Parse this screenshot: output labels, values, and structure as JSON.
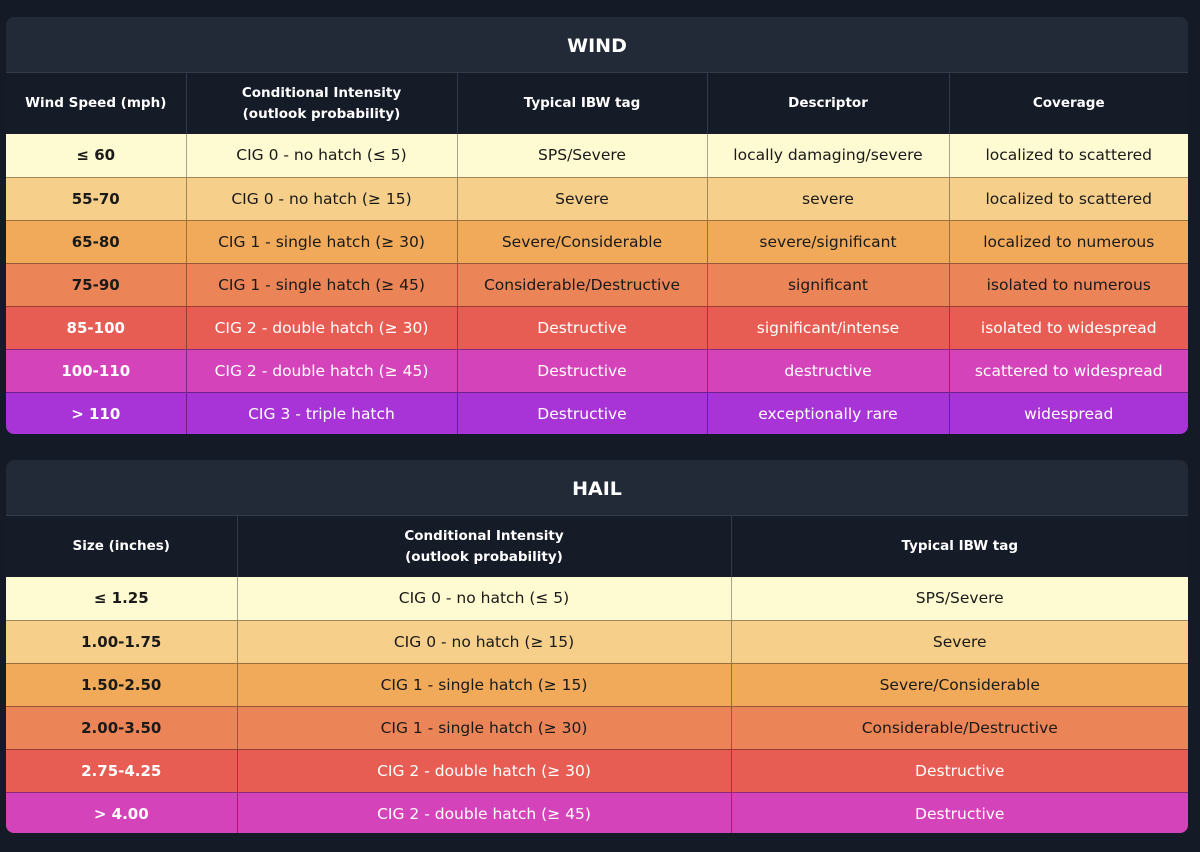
{
  "wind": {
    "title": "WIND",
    "headers": {
      "col1": "Wind Speed (mph)",
      "col2_line1": "Conditional Intensity",
      "col2_line2": "(outlook probability)",
      "col3": "Typical IBW tag",
      "col4": "Descriptor",
      "col5": "Coverage"
    },
    "rows": [
      {
        "speed": "≤ 60",
        "cig": "CIG 0 - no hatch (≤ 5)",
        "ibw": "SPS/Severe",
        "descriptor": "locally damaging/severe",
        "coverage": "localized to scattered",
        "color": "#fefad1"
      },
      {
        "speed": "55-70",
        "cig": "CIG 0 - no hatch (≥ 15)",
        "ibw": "Severe",
        "descriptor": "severe",
        "coverage": "localized to scattered",
        "color": "#f6cf8b"
      },
      {
        "speed": "65-80",
        "cig": "CIG 1 - single hatch (≥ 30)",
        "ibw": "Severe/Considerable",
        "descriptor": "severe/significant",
        "coverage": "localized to numerous",
        "color": "#f0aa5a"
      },
      {
        "speed": "75-90",
        "cig": "CIG 1 - single hatch (≥ 45)",
        "ibw": "Considerable/Destructive",
        "descriptor": "significant",
        "coverage": "isolated to numerous",
        "color": "#eb8456"
      },
      {
        "speed": "85-100",
        "cig": "CIG 2 - double hatch (≥ 30)",
        "ibw": "Destructive",
        "descriptor": "significant/intense",
        "coverage": "isolated to widespread",
        "color": "#e85d53"
      },
      {
        "speed": "100-110",
        "cig": "CIG 2 - double hatch (≥ 45)",
        "ibw": "Destructive",
        "descriptor": "destructive",
        "coverage": "scattered to widespread",
        "color": "#d543bb"
      },
      {
        "speed": "> 110",
        "cig": "CIG 3 - triple hatch",
        "ibw": "Destructive",
        "descriptor": "exceptionally rare",
        "coverage": "widespread",
        "color": "#a834d8"
      }
    ]
  },
  "hail": {
    "title": "HAIL",
    "headers": {
      "col1": "Size (inches)",
      "col2_line1": "Conditional Intensity",
      "col2_line2": "(outlook probability)",
      "col3": "Typical IBW tag"
    },
    "rows": [
      {
        "size": "≤ 1.25",
        "cig": "CIG 0 - no hatch (≤ 5)",
        "ibw": "SPS/Severe",
        "color": "#fefad1"
      },
      {
        "size": "1.00-1.75",
        "cig": "CIG 0 - no hatch (≥ 15)",
        "ibw": "Severe",
        "color": "#f6cf8b"
      },
      {
        "size": "1.50-2.50",
        "cig": "CIG 1 - single hatch (≥ 15)",
        "ibw": "Severe/Considerable",
        "color": "#f0aa5a"
      },
      {
        "size": "2.00-3.50",
        "cig": "CIG 1 - single hatch (≥ 30)",
        "ibw": "Considerable/Destructive",
        "color": "#eb8456"
      },
      {
        "size": "2.75-4.25",
        "cig": "CIG 2 - double hatch (≥ 30)",
        "ibw": "Destructive",
        "color": "#e85d53"
      },
      {
        "size": "> 4.00",
        "cig": "CIG 2 - double hatch (≥ 45)",
        "ibw": "Destructive",
        "color": "#d543bb"
      }
    ]
  }
}
